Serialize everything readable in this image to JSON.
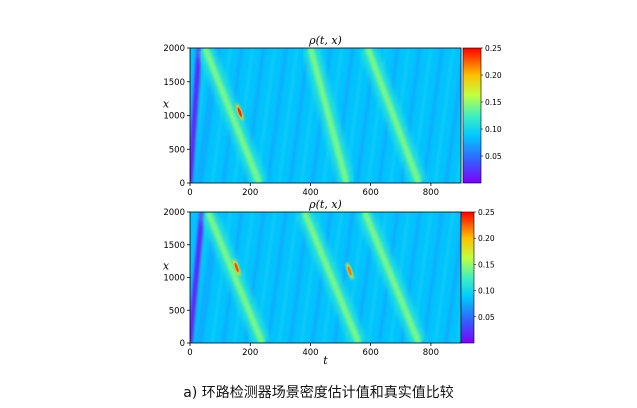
{
  "chart_data": [
    {
      "type": "heatmap",
      "title": "ρ(t, x)",
      "xlabel": "",
      "ylabel": "x",
      "xlim": [
        0,
        900
      ],
      "ylim": [
        0,
        2000
      ],
      "xticks": [
        "0",
        "200",
        "400",
        "600",
        "800"
      ],
      "yticks": [
        "0",
        "500",
        "1000",
        "1500",
        "2000"
      ],
      "colorbar": {
        "range": [
          0,
          0.25
        ],
        "ticks": [
          "0.05",
          "0.10",
          "0.15",
          "0.20",
          "0.25"
        ],
        "colormap": "jet"
      },
      "features": {
        "dark_bands": [
          {
            "t_at_x0": 0,
            "t_at_x2000": 30
          }
        ],
        "congestion_waves": [
          {
            "t_at_x2000": 50,
            "t_at_x0": 230
          },
          {
            "t_at_x2000": 400,
            "t_at_x0": 520
          },
          {
            "t_at_x2000": 590,
            "t_at_x0": 760
          }
        ],
        "peaks": [
          {
            "t": 165,
            "x": 1050,
            "value": 0.24
          }
        ]
      }
    },
    {
      "type": "heatmap",
      "title": "ρ(t, x)",
      "xlabel": "t",
      "ylabel": "x",
      "xlim": [
        0,
        900
      ],
      "ylim": [
        0,
        2000
      ],
      "xticks": [
        "0",
        "200",
        "400",
        "600",
        "800"
      ],
      "yticks": [
        "0",
        "500",
        "1000",
        "1500",
        "2000"
      ],
      "colorbar": {
        "range": [
          0,
          0.25
        ],
        "ticks": [
          "0.05",
          "0.10",
          "0.15",
          "0.20",
          "0.25"
        ],
        "colormap": "jet"
      },
      "features": {
        "dark_bands": [
          {
            "t_at_x0": 0,
            "t_at_x2000": 40
          }
        ],
        "congestion_waves": [
          {
            "t_at_x2000": 60,
            "t_at_x0": 240
          },
          {
            "t_at_x2000": 380,
            "t_at_x0": 560
          },
          {
            "t_at_x2000": 580,
            "t_at_x0": 760
          }
        ],
        "peaks": [
          {
            "t": 155,
            "x": 1150,
            "value": 0.23
          },
          {
            "t": 530,
            "x": 1100,
            "value": 0.22
          }
        ]
      }
    }
  ],
  "caption": {
    "label": "a)",
    "text": "环路检测器场景密度估计值和真实值比较"
  }
}
